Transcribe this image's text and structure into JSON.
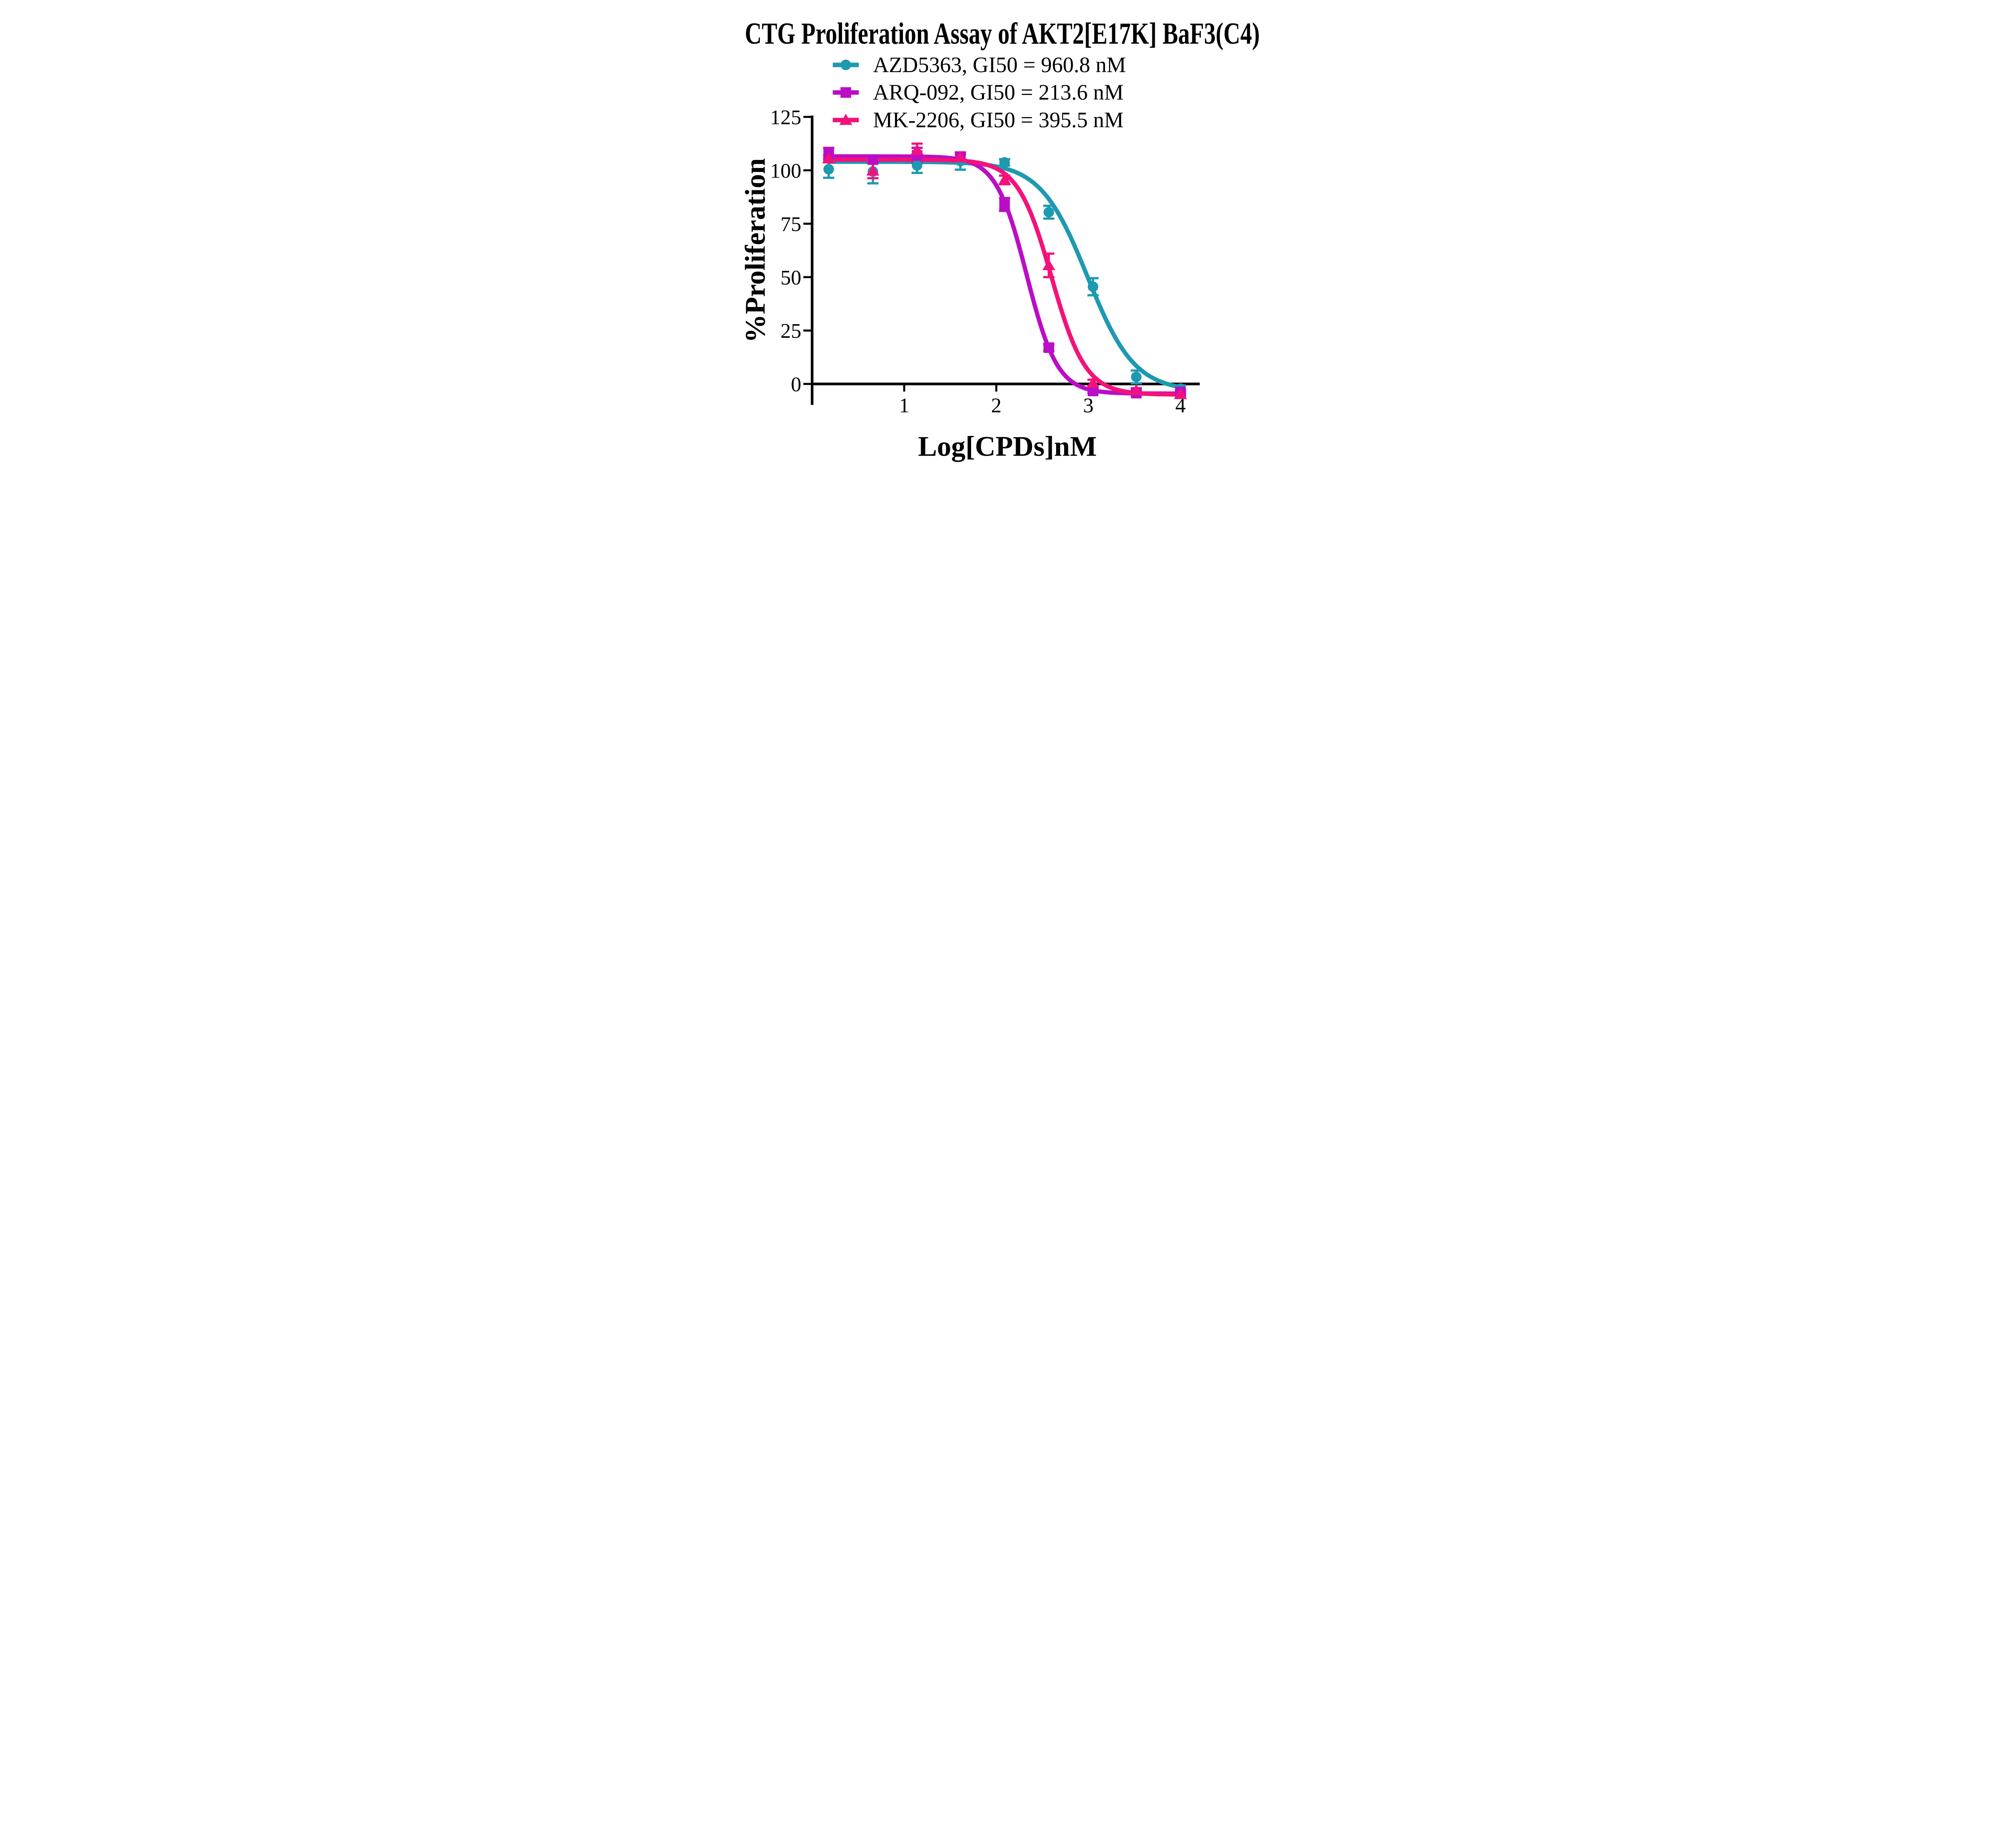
{
  "chart_data": {
    "type": "line",
    "title": "CTG Proliferation Assay of AKT2[E17K] BaF3(C4)",
    "xlabel": "Log[CPDs]nM",
    "ylabel": "%Proliferation",
    "x_ticks": [
      1,
      2,
      3,
      4
    ],
    "y_ticks": [
      0,
      25,
      50,
      75,
      100,
      125
    ],
    "xlim": [
      0,
      4.2
    ],
    "ylim": [
      -10,
      125
    ],
    "grid": false,
    "legend_position": "inside top-left",
    "axis_color": "#000000",
    "background_color": "#ffffff",
    "series": [
      {
        "name": "AZD5363",
        "legend_label": "AZD5363, GI50 = 960.8 nM",
        "gi50_nM": 960.8,
        "color": "#1E9AB0",
        "marker": "circle",
        "x": [
          0.18,
          0.66,
          1.14,
          1.61,
          2.09,
          2.57,
          3.05,
          3.52,
          4.0
        ],
        "y": [
          100.5,
          99.4,
          102.3,
          104.3,
          103.7,
          80.4,
          45.5,
          3.3,
          -2.2
        ],
        "yerr": [
          4.0,
          5.5,
          3.5,
          4.0,
          1.5,
          3.0,
          4.0,
          3.0,
          1.5
        ],
        "fit": {
          "top": 104.0,
          "bottom": -3.5,
          "log_gi50": 2.99,
          "hill": 1.7
        }
      },
      {
        "name": "ARQ-092",
        "legend_label": "ARQ-092, GI50 = 213.6 nM",
        "gi50_nM": 213.6,
        "color": "#BB0DC6",
        "marker": "square",
        "x": [
          0.18,
          0.66,
          1.14,
          1.61,
          2.09,
          2.57,
          3.05,
          3.52,
          4.0
        ],
        "y": [
          108.0,
          105.0,
          107.0,
          106.4,
          84.0,
          17.0,
          -3.3,
          -4.3,
          -3.8
        ],
        "yerr": [
          2.5,
          1.5,
          3.5,
          2.0,
          3.0,
          1.5,
          1.0,
          1.0,
          1.0
        ],
        "fit": {
          "top": 106.5,
          "bottom": -4.5,
          "log_gi50": 2.33,
          "hill": 2.6
        }
      },
      {
        "name": "MK-2206",
        "legend_label": "MK-2206, GI50 = 395.5 nM",
        "gi50_nM": 395.5,
        "color": "#F3127C",
        "marker": "triangle",
        "x": [
          0.18,
          0.66,
          1.14,
          1.61,
          2.09,
          2.57,
          3.05,
          3.52,
          4.0
        ],
        "y": [
          105.5,
          99.8,
          109.5,
          106.0,
          95.5,
          55.5,
          0.5,
          -3.0,
          -4.8
        ],
        "yerr": [
          1.5,
          3.5,
          3.0,
          1.5,
          2.0,
          5.5,
          1.5,
          1.0,
          1.0
        ],
        "fit": {
          "top": 105.0,
          "bottom": -5.0,
          "log_gi50": 2.6,
          "hill": 2.35
        }
      }
    ]
  }
}
